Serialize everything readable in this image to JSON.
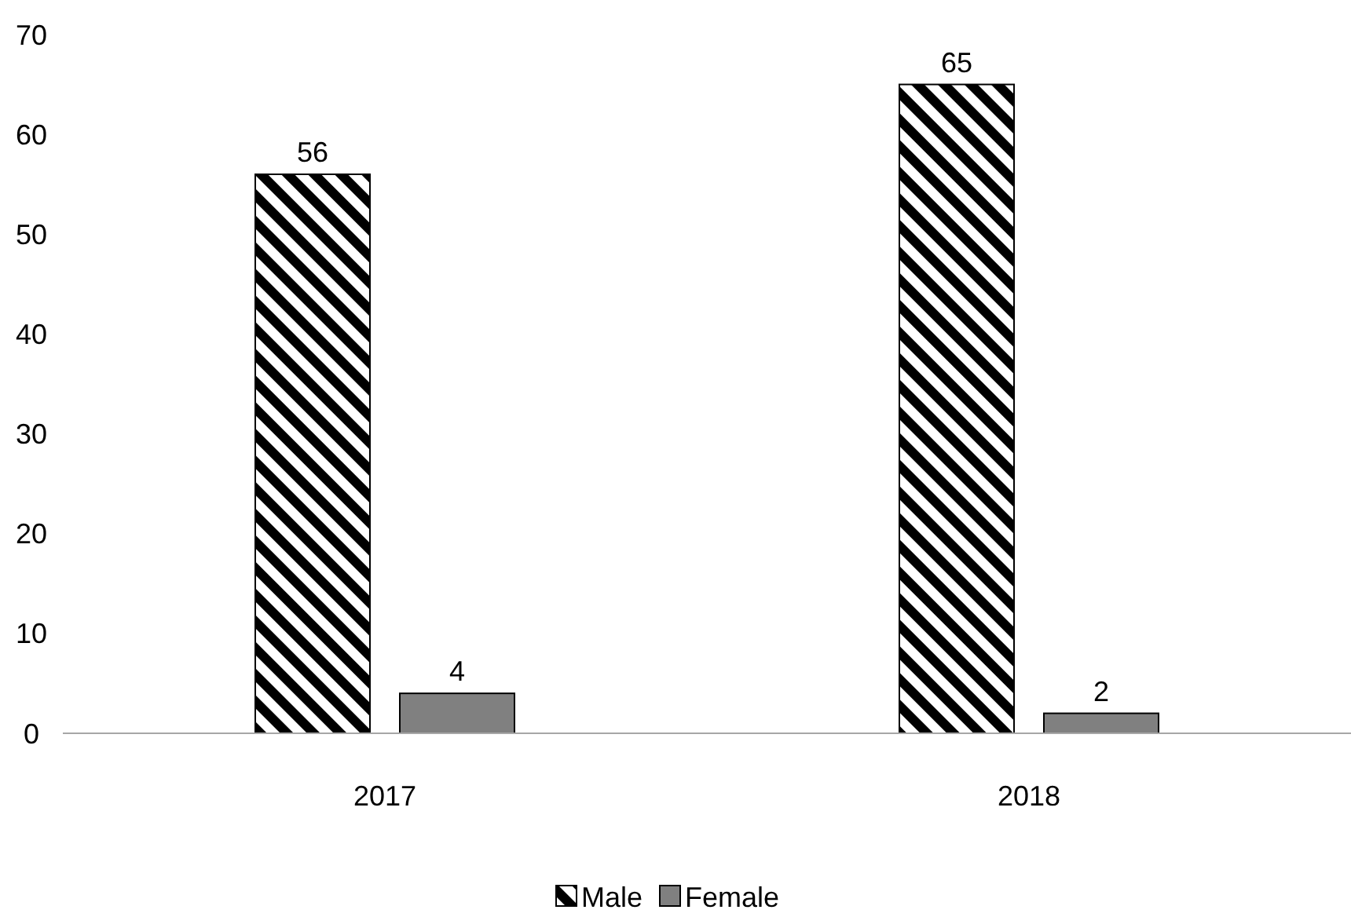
{
  "chart_data": {
    "type": "bar",
    "categories": [
      "2017",
      "2018"
    ],
    "series": [
      {
        "name": "Male",
        "color": "#000000",
        "values": [
          56,
          65
        ]
      },
      {
        "name": "Female",
        "color": "#808080",
        "values": [
          4,
          2
        ]
      }
    ],
    "ylim": [
      0,
      70
    ],
    "yticks": [
      0,
      10,
      20,
      30,
      40,
      50,
      60,
      70
    ],
    "grid": false,
    "legend": "bottom",
    "data_labels": true
  }
}
